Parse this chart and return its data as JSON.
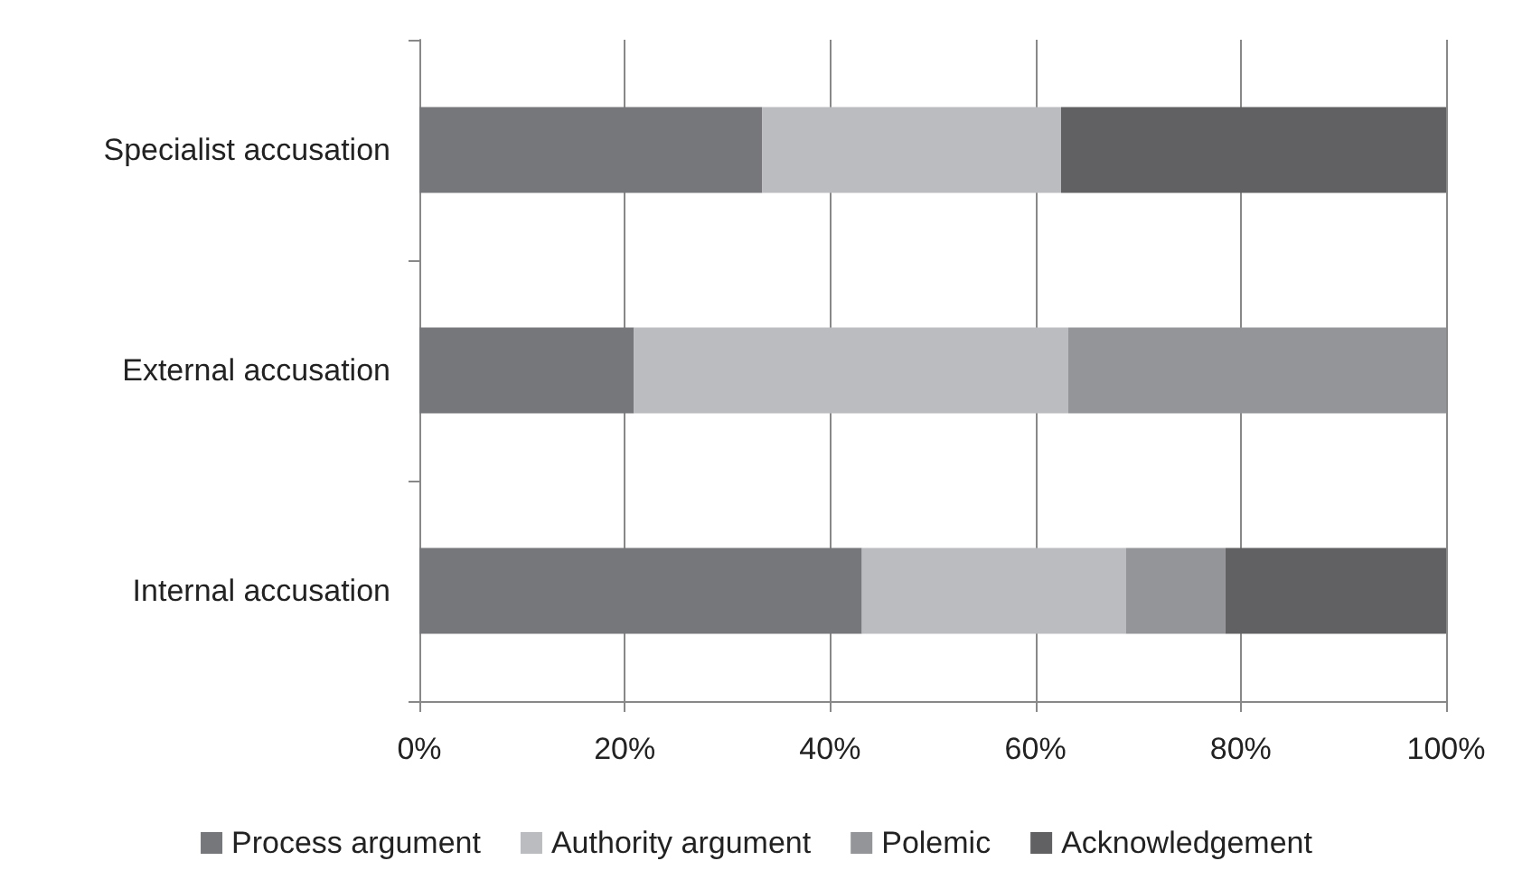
{
  "chart_data": {
    "type": "bar",
    "orientation": "horizontal",
    "stacked": true,
    "categories": [
      "Specialist accusation",
      "External accusation",
      "Internal accusation"
    ],
    "series": [
      {
        "name": "Process argument",
        "color": "#76777b",
        "values": [
          33.4,
          20.9,
          43.1
        ]
      },
      {
        "name": "Authority argument",
        "color": "#bbbcc0",
        "values": [
          29.1,
          42.3,
          25.7
        ]
      },
      {
        "name": "Polemic",
        "color": "#949599",
        "values": [
          0,
          36.8,
          9.7
        ]
      },
      {
        "name": "Acknowledgement",
        "color": "#616163",
        "values": [
          37.5,
          0,
          21.5
        ]
      }
    ],
    "xlim": [
      0,
      100
    ],
    "xticks": [
      {
        "value": 0,
        "label": "0%"
      },
      {
        "value": 20,
        "label": "20%"
      },
      {
        "value": 40,
        "label": "40%"
      },
      {
        "value": 60,
        "label": "60%"
      },
      {
        "value": 80,
        "label": "80%"
      },
      {
        "value": 100,
        "label": "100%"
      }
    ],
    "grid": "x",
    "legend": "bottom"
  }
}
